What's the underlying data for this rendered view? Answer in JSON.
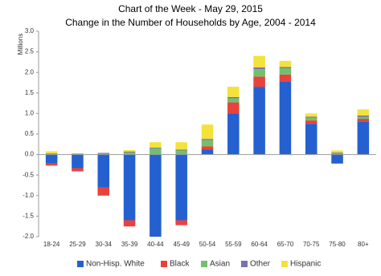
{
  "chart_data": {
    "type": "stacked-bar",
    "title": "Chart of the Week - May 29, 2015",
    "subtitle": "Change in the Number of Households by Age, 2004 - 2014",
    "y_label": "Millions",
    "categories": [
      "18-24",
      "25-29",
      "30-34",
      "35-39",
      "40-44",
      "45-49",
      "50-54",
      "55-59",
      "60-64",
      "65-70",
      "70-75",
      "75-80",
      "80+"
    ],
    "series": [
      {
        "name": "Non-Hisp. White",
        "color": "#2460d0",
        "values": [
          -0.22,
          -0.33,
          -0.8,
          -1.6,
          -2.0,
          -1.6,
          0.12,
          1.0,
          1.65,
          1.77,
          0.75,
          -0.22,
          0.8
        ]
      },
      {
        "name": "Black",
        "color": "#e8423b",
        "values": [
          -0.05,
          -0.08,
          -0.2,
          -0.15,
          0,
          -0.12,
          0.08,
          0.27,
          0.25,
          0.18,
          0.08,
          0.02,
          0.07
        ]
      },
      {
        "name": "Asian",
        "color": "#72c06e",
        "values": [
          0.02,
          0.01,
          0.02,
          0.05,
          0.15,
          0.1,
          0.15,
          0.1,
          0.18,
          0.15,
          0.07,
          0.02,
          0.05
        ]
      },
      {
        "name": "Other",
        "color": "#7a6fb5",
        "values": [
          0.01,
          0.01,
          0.02,
          0.02,
          0.02,
          0.02,
          0.03,
          0.03,
          0.04,
          0.03,
          0.02,
          0.01,
          0.03
        ]
      },
      {
        "name": "Hispanic",
        "color": "#f4e13c",
        "values": [
          0.05,
          0.01,
          0,
          0.04,
          0.13,
          0.18,
          0.35,
          0.25,
          0.28,
          0.15,
          0.08,
          0.05,
          0.15
        ]
      }
    ],
    "ylim": [
      -2,
      3
    ],
    "yticks": [
      {
        "value": -2,
        "label": "-2.0"
      },
      {
        "value": -1.5,
        "label": "-1.5"
      },
      {
        "value": -1,
        "label": "-1.0"
      },
      {
        "value": -0.5,
        "label": "-0.5"
      },
      {
        "value": 0,
        "label": "0.0"
      },
      {
        "value": 0.5,
        "label": "0.5"
      },
      {
        "value": 1,
        "label": "1.0"
      },
      {
        "value": 1.5,
        "label": "1.5"
      },
      {
        "value": 2,
        "label": "2.0"
      },
      {
        "value": 2.5,
        "label": "2.5"
      },
      {
        "value": 3,
        "label": "3.0"
      }
    ],
    "grid": false,
    "legend": "bottom"
  }
}
